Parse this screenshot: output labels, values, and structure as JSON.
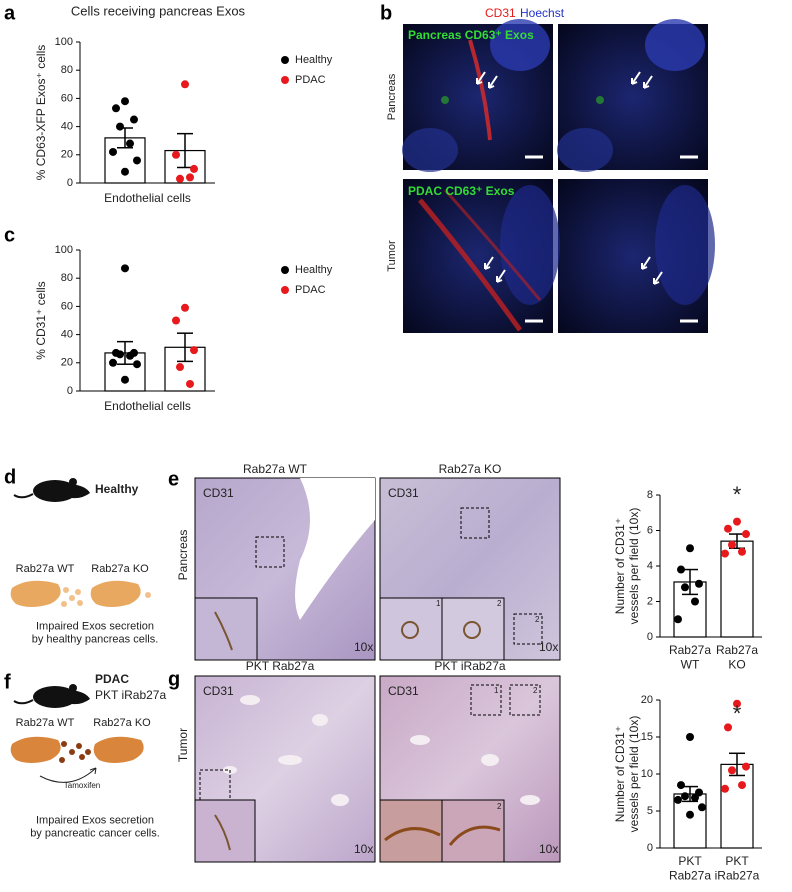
{
  "chart_data": [
    {
      "type": "bar",
      "title": "Cells receiving pancreas Exos",
      "ylabel": "% CD63-XFP Exos⁺ cells",
      "xlabel": "Endothelial cells",
      "ylim": [
        0,
        100
      ],
      "yticks": [
        0,
        20,
        40,
        60,
        80,
        100
      ],
      "legend": "right",
      "series": [
        {
          "name": "Healthy",
          "color": "#000000",
          "value": 32,
          "error": 7,
          "points": [
            58,
            53,
            45,
            40,
            28,
            22,
            16,
            8
          ]
        },
        {
          "name": "PDAC",
          "color": "#e8191c",
          "value": 23,
          "error": 12,
          "points": [
            70,
            20,
            10,
            3,
            4
          ]
        }
      ]
    },
    {
      "type": "bar",
      "ylabel": "% CD31⁺ cells",
      "xlabel": "Endothelial cells",
      "ylim": [
        0,
        100
      ],
      "yticks": [
        0,
        20,
        40,
        60,
        80,
        100
      ],
      "legend": "right",
      "series": [
        {
          "name": "Healthy",
          "color": "#000000",
          "value": 27,
          "error": 8,
          "points": [
            87,
            27,
            27,
            26,
            25,
            20,
            19,
            8
          ]
        },
        {
          "name": "PDAC",
          "color": "#e8191c",
          "value": 31,
          "error": 10,
          "points": [
            59,
            50,
            29,
            17,
            5
          ]
        }
      ]
    },
    {
      "type": "bar",
      "ylabel": "Number of CD31⁺\nvessels per field (10x)",
      "annotation": "*",
      "categories": [
        "Rab27a\nWT",
        "Rab27a\nKO"
      ],
      "ylim": [
        0,
        8
      ],
      "yticks": [
        0,
        2,
        4,
        6,
        8
      ],
      "series": [
        {
          "color": "#000000",
          "value": 3.1,
          "error": 0.7,
          "points": [
            5.0,
            3.8,
            3.0,
            2.8,
            2.0,
            1.0
          ]
        },
        {
          "color": "#e8191c",
          "value": 5.4,
          "error": 0.4,
          "points": [
            6.5,
            6.1,
            5.8,
            5.2,
            4.8,
            4.7
          ]
        }
      ]
    },
    {
      "type": "bar",
      "ylabel": "Number of CD31⁺\nvessels per field (10x)",
      "annotation": "*",
      "categories": [
        "PKT\nRab27a",
        "PKT\niRab27a"
      ],
      "ylim": [
        0,
        20
      ],
      "yticks": [
        0,
        5,
        10,
        15,
        20
      ],
      "series": [
        {
          "color": "#000000",
          "value": 7.3,
          "error": 1.0,
          "points": [
            15,
            8.5,
            7.5,
            7,
            6.8,
            6.5,
            5.5,
            4.5
          ]
        },
        {
          "color": "#e8191c",
          "value": 11.3,
          "error": 1.5,
          "points": [
            19.5,
            16.3,
            11,
            10.5,
            8.5,
            8
          ]
        }
      ]
    }
  ],
  "panels": {
    "letters": [
      "a",
      "b",
      "c",
      "d",
      "e",
      "f",
      "g"
    ],
    "b": {
      "stain1": "CD31",
      "stain2": "Hoechst",
      "top_label": "Pancreas CD63⁺ Exos",
      "bottom_label": "PDAC CD63⁺ Exos",
      "row1": "Pancreas",
      "row2": "Tumor"
    },
    "d": {
      "title": "Healthy",
      "left": "Rab27a WT",
      "right": "Rab27a KO",
      "caption": "Impaired Exos secretion\nby healthy pancreas cells."
    },
    "e": {
      "left_title": "Rab27a WT",
      "right_title": "Rab27a KO",
      "row": "Pancreas",
      "stain_left": "CD31",
      "stain_right": "CD31",
      "mag_left": "10x",
      "mag_right": "10x",
      "inset1": "1",
      "inset2": "2",
      "box2": "2"
    },
    "f": {
      "title": "PDAC",
      "subtitle": "PKT iRab27a",
      "left": "Rab27a WT",
      "right": "Rab27a KO",
      "arrow": "Tamoxifen",
      "caption": "Impaired Exos secretion\nby pancreatic cancer cells."
    },
    "g": {
      "left_title": "PKT Rab27a",
      "right_title": "PKT iRab27a",
      "row": "Tumor",
      "stain_left": "CD31",
      "stain_right": "CD31",
      "mag_left": "10x",
      "mag_right": "10x",
      "box1": "1",
      "box2": "2",
      "inset2": "2"
    }
  }
}
